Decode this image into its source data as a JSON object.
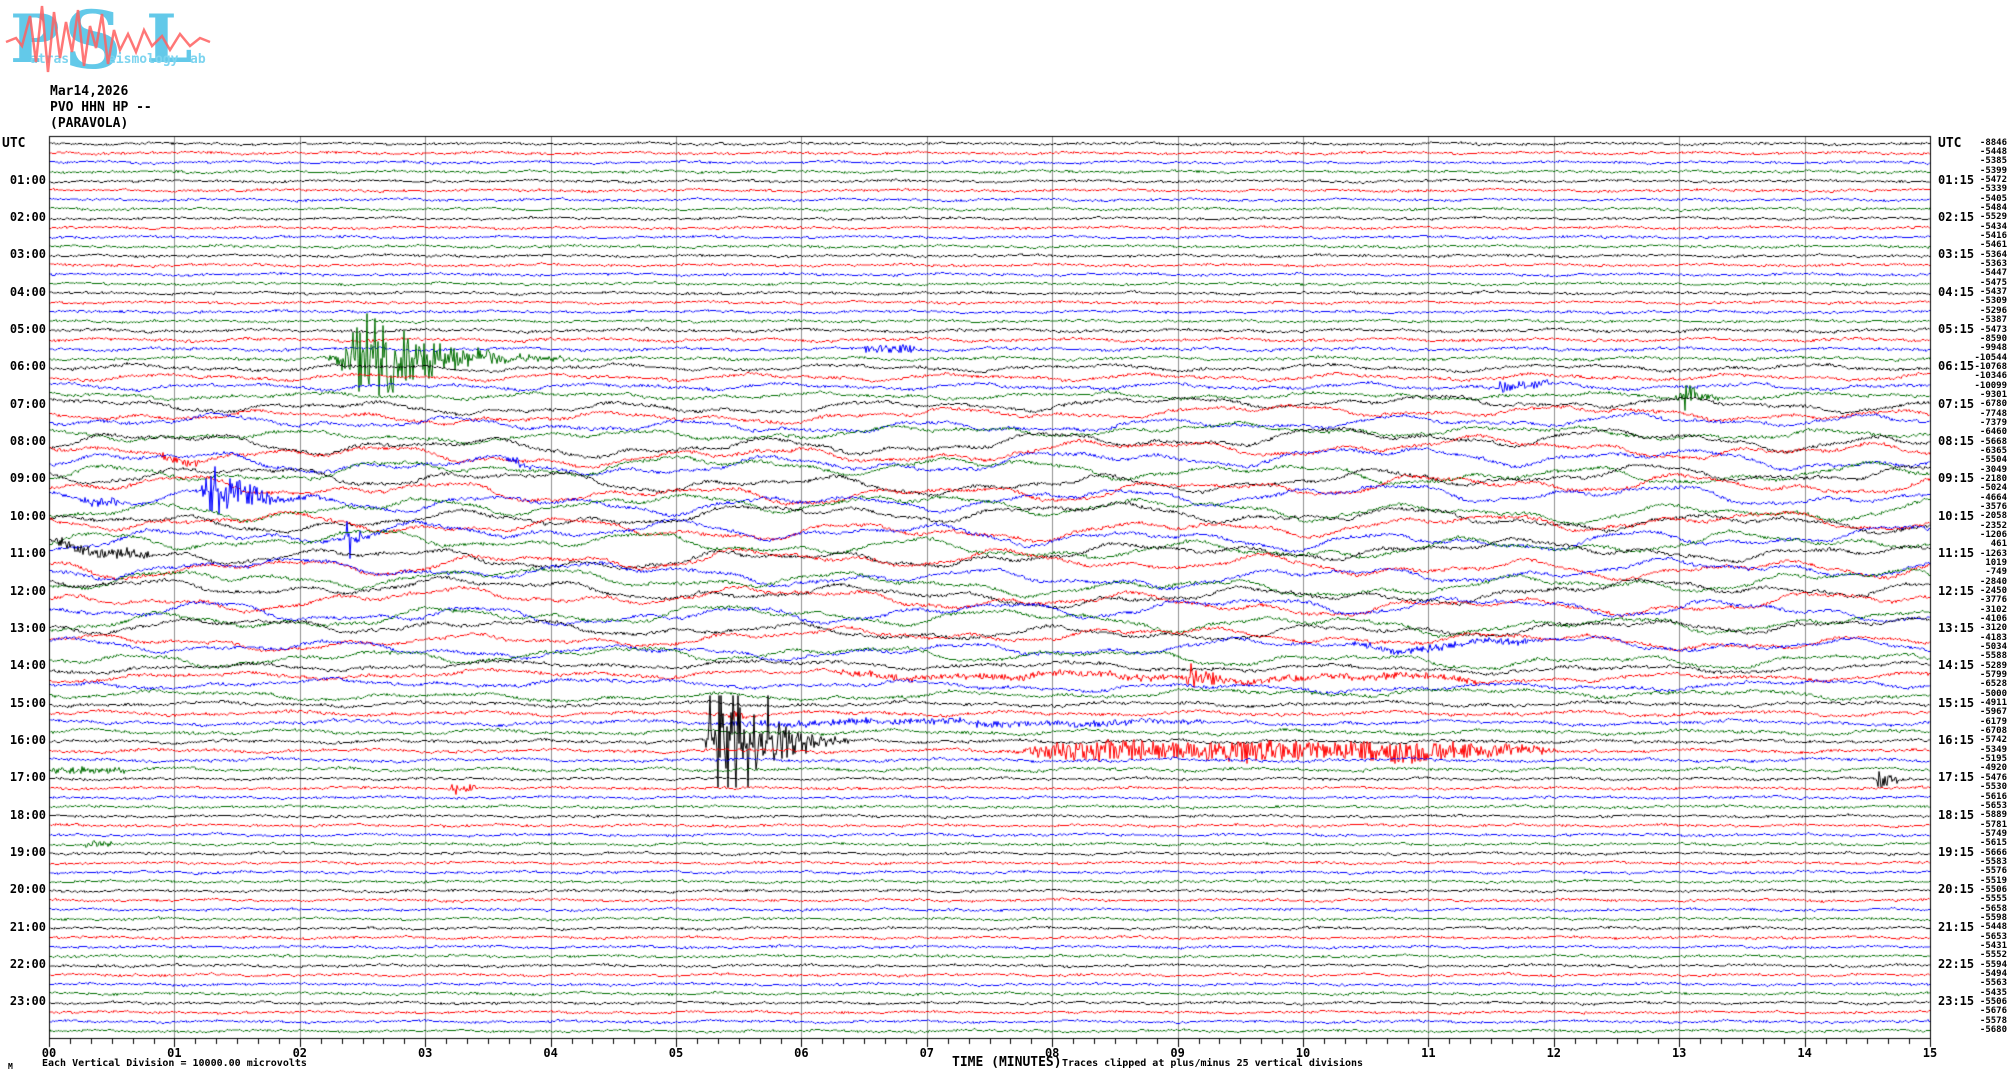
{
  "logo": {
    "letter_p": "P",
    "letter_s": "S",
    "letter_l": "L",
    "word_p": "atras",
    "word_s": "eismology",
    "word_l": "ab",
    "blue": "#63c9e9",
    "red": "#ff5f5f"
  },
  "header": {
    "date": "Mar14,2026",
    "station": "PVO HHN HP --",
    "location": "(PARAVOLA)"
  },
  "plot": {
    "utc_left": "UTC",
    "utc_right": "UTC",
    "left_labels": [
      "01:00",
      "02:00",
      "03:00",
      "04:00",
      "05:00",
      "06:00",
      "07:00",
      "08:00",
      "09:00",
      "10:00",
      "11:00",
      "12:00",
      "13:00",
      "14:00",
      "15:00",
      "16:00",
      "17:00",
      "18:00",
      "19:00",
      "20:00",
      "21:00",
      "22:00",
      "23:00"
    ],
    "right_labels": [
      "01:15",
      "02:15",
      "03:15",
      "04:15",
      "05:15",
      "06:15",
      "07:15",
      "08:15",
      "09:15",
      "10:15",
      "11:15",
      "12:15",
      "13:15",
      "14:15",
      "15:15",
      "16:15",
      "17:15",
      "18:15",
      "19:15",
      "20:15",
      "21:15",
      "22:15",
      "23:15"
    ],
    "right_offsets": [
      -8846,
      -5448,
      -5385,
      -5399,
      -5472,
      -5339,
      -5405,
      -5484,
      -5529,
      -5434,
      -5416,
      -5461,
      -5364,
      -5363,
      -5447,
      -5475,
      -5437,
      -5309,
      -5296,
      -5387,
      -5473,
      -8590,
      -9948,
      -10544,
      -10768,
      -10346,
      -10099,
      -9301,
      -6780,
      -7748,
      -7379,
      -6460,
      -5668,
      -6365,
      -5504,
      -3049,
      -2180,
      -5024,
      -4664,
      -3576,
      -2058,
      -2352,
      -1206,
      461,
      -1263,
      1019,
      -749,
      -2840,
      -2450,
      -3776,
      -3102,
      -4106,
      -3120,
      -4183,
      -5034,
      -5588,
      -5289,
      -5799,
      -6528,
      -5000,
      -4911,
      -5967,
      -6179,
      -6708,
      -5742,
      -5349,
      -5195,
      -4920,
      -5476,
      -5530,
      -5616,
      -5653,
      -5889,
      -5781,
      -5749,
      -5615,
      -5666,
      -5583,
      -5576,
      -5519,
      -5506,
      -5555,
      -5658,
      -5598,
      -5448,
      -5653,
      -5431,
      -5552,
      -5594,
      -5494,
      -5563,
      -5435,
      -5506,
      -5676,
      -5578,
      -5680
    ],
    "minute_labels": [
      "00",
      "01",
      "02",
      "03",
      "04",
      "05",
      "06",
      "07",
      "08",
      "09",
      "10",
      "11",
      "12",
      "13",
      "14",
      "15"
    ],
    "colors": {
      "trace_cycle": [
        "#000000",
        "#ff0000",
        "#0000ff",
        "#006e00"
      ],
      "grid": "#909090",
      "border": "#000000"
    }
  },
  "footer": {
    "mark": "M",
    "scale_note": "Each Vertical Division = 10000.00 microvolts",
    "axis_title": "TIME (MINUTES)",
    "clip_note": "Traces clipped at plus/minus 25 vertical divisions"
  },
  "chart_data": {
    "type": "line",
    "title": "PVO HHN HP -- (PARAVOLA) helicorder, Mar14,2026",
    "xlabel": "TIME (MINUTES)",
    "x_range_minutes": [
      0,
      15
    ],
    "rows": 96,
    "minutes_per_row": 15,
    "row_color_cycle": [
      "black",
      "red",
      "blue",
      "green"
    ],
    "clip_divisions": 25,
    "vertical_division_microvolts": 10000.0,
    "noise_bands": [
      {
        "from": 0,
        "to": 19,
        "wander": 1.2,
        "wavelength": 160,
        "jitter": 1.1
      },
      {
        "from": 20,
        "to": 23,
        "wander": 1.8,
        "wavelength": 170,
        "jitter": 1.3
      },
      {
        "from": 24,
        "to": 27,
        "wander": 4,
        "wavelength": 220,
        "jitter": 1.4
      },
      {
        "from": 28,
        "to": 31,
        "wander": 7,
        "wavelength": 260,
        "jitter": 1.5
      },
      {
        "from": 32,
        "to": 51,
        "wander": 11,
        "wavelength": 300,
        "jitter": 1.6
      },
      {
        "from": 52,
        "to": 55,
        "wander": 8.5,
        "wavelength": 280,
        "jitter": 1.5
      },
      {
        "from": 56,
        "to": 59,
        "wander": 5,
        "wavelength": 260,
        "jitter": 1.5
      },
      {
        "from": 60,
        "to": 63,
        "wander": 3,
        "wavelength": 220,
        "jitter": 1.4
      },
      {
        "from": 64,
        "to": 67,
        "wander": 2,
        "wavelength": 180,
        "jitter": 1.3
      },
      {
        "from": 68,
        "to": 95,
        "wander": 1.2,
        "wavelength": 160,
        "jitter": 1.1
      }
    ],
    "events": [
      {
        "row": 23,
        "label": "05:45 green burst",
        "type": "quake",
        "start": 2.2,
        "end": 4.3,
        "amp": 26
      },
      {
        "row": 22,
        "label": "05:30 blue fuzz",
        "type": "fuzz",
        "start": 6.5,
        "end": 6.9,
        "amp": 4
      },
      {
        "row": 26,
        "label": "06:30 blue fuzz",
        "type": "fuzz",
        "start": 11.55,
        "end": 11.95,
        "amp": 5
      },
      {
        "row": 27,
        "label": "06:45 green burst",
        "type": "quake",
        "start": 12.95,
        "end": 13.45,
        "amp": 11
      },
      {
        "row": 33,
        "label": "08:15 red fuzz",
        "type": "fuzz",
        "start": 0.9,
        "end": 1.2,
        "amp": 3.5
      },
      {
        "row": 34,
        "label": "08:30 blue fuzz",
        "type": "fuzz",
        "start": 3.65,
        "end": 3.85,
        "amp": 4
      },
      {
        "row": 38,
        "label": "09:30 blue burst",
        "type": "quake",
        "start": 1.15,
        "end": 2.3,
        "amp": 16
      },
      {
        "row": 38,
        "label": "09:30 blue fuzz",
        "type": "fuzz",
        "start": 0.25,
        "end": 0.55,
        "amp": 4
      },
      {
        "row": 42,
        "label": "10:30 blue spike",
        "type": "quake",
        "start": 2.35,
        "end": 2.6,
        "amp": 14
      },
      {
        "row": 44,
        "label": "11:00 black fuzz",
        "type": "fuzz",
        "start": 0.05,
        "end": 0.8,
        "amp": 5
      },
      {
        "row": 54,
        "label": "13:30 blue fuzz",
        "type": "fuzz",
        "start": 10.4,
        "end": 11.9,
        "amp": 3
      },
      {
        "row": 57,
        "label": "14:15 red burst",
        "type": "quake",
        "start": 9.05,
        "end": 9.5,
        "amp": 19
      },
      {
        "row": 57,
        "label": "14:15 red noise",
        "type": "fuzz",
        "start": 6.3,
        "end": 11.4,
        "amp": 2.5
      },
      {
        "row": 61,
        "label": "15:15 red blip",
        "type": "quake",
        "start": 5.4,
        "end": 5.7,
        "amp": 6
      },
      {
        "row": 62,
        "label": "15:30 blue noise",
        "type": "fuzz",
        "start": 5.4,
        "end": 9.2,
        "amp": 2.5
      },
      {
        "row": 64,
        "label": "16:00 black event",
        "type": "quake",
        "start": 5.2,
        "end": 6.4,
        "amp": 46
      },
      {
        "row": 65,
        "label": "16:15 red tremor",
        "type": "tremor",
        "start": 7.65,
        "end": 12.2,
        "amp": 11
      },
      {
        "row": 67,
        "label": "16:45 green fuzz",
        "type": "fuzz",
        "start": 0.0,
        "end": 0.6,
        "amp": 3
      },
      {
        "row": 69,
        "label": "17:15 red blip",
        "type": "fuzz",
        "start": 3.2,
        "end": 3.4,
        "amp": 4
      },
      {
        "row": 68,
        "label": "17:00 black blip",
        "type": "quake",
        "start": 14.55,
        "end": 14.85,
        "amp": 8
      },
      {
        "row": 75,
        "label": "18:45 green fuzz",
        "type": "fuzz",
        "start": 0.28,
        "end": 0.5,
        "amp": 3
      }
    ]
  }
}
